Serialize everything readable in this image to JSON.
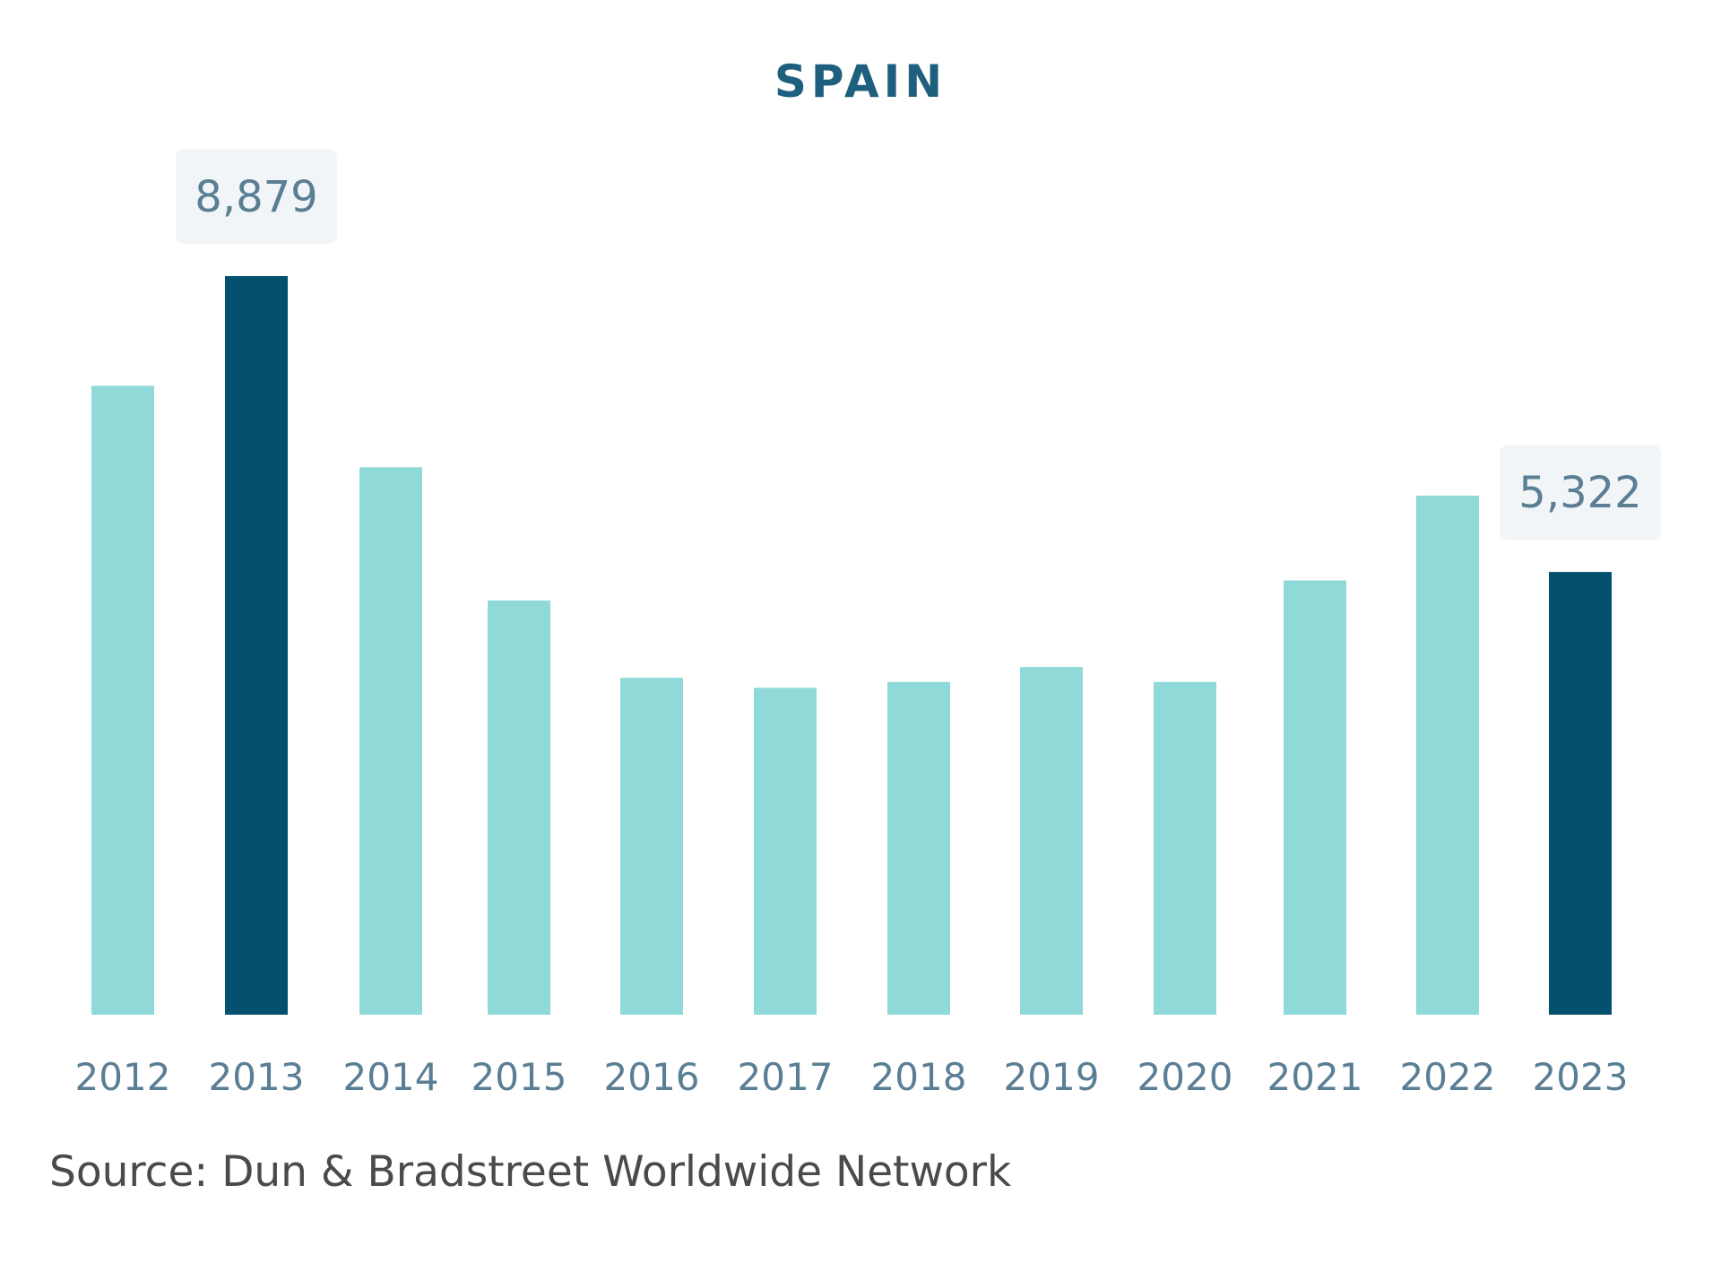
{
  "chart_data": {
    "type": "bar",
    "title": "SPAIN",
    "xlabel": "",
    "ylabel": "",
    "categories": [
      "2012",
      "2013",
      "2014",
      "2015",
      "2016",
      "2017",
      "2018",
      "2019",
      "2020",
      "2021",
      "2022",
      "2023"
    ],
    "values": [
      7560,
      8879,
      6580,
      4980,
      4050,
      3930,
      4000,
      4180,
      4000,
      5220,
      6240,
      5322
    ],
    "highlighted": [
      "2013",
      "2023"
    ],
    "data_labels": [
      {
        "category": "2013",
        "text": "8,879"
      },
      {
        "category": "2023",
        "text": "5,322"
      }
    ],
    "ylim": [
      0,
      8879
    ],
    "grid": false,
    "legend": "none",
    "colors": {
      "bar": "#8fd9d8",
      "highlight": "#03506f",
      "title": "#1f5f7e",
      "label": "#5a7e94",
      "label_bg": "#f1f5f7"
    }
  },
  "source": "Source: Dun & Bradstreet Worldwide Network"
}
